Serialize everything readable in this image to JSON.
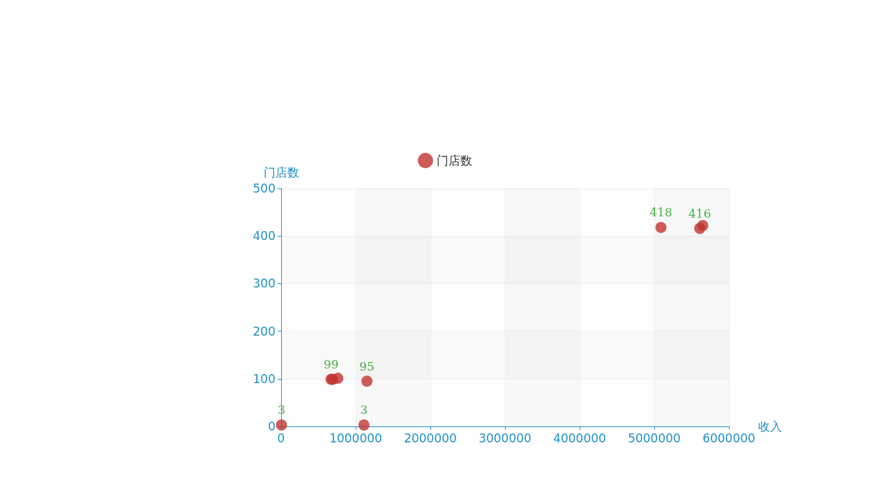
{
  "chart_data": {
    "type": "scatter",
    "xlabel": "收入",
    "ylabel": "门店数",
    "series": [
      {
        "name": "门店数",
        "color": "#c23531",
        "x": [
          5000,
          1110000,
          670000,
          690000,
          760000,
          1150000,
          5090000,
          5610000,
          5650000
        ],
        "values": [
          3,
          3,
          99,
          99,
          101,
          95,
          418,
          416,
          422
        ],
        "value_labels": [
          "3",
          "3",
          "99",
          null,
          null,
          "95",
          "418",
          "416",
          null
        ]
      }
    ],
    "xlim": [
      0,
      6000000
    ],
    "xticks": [
      0,
      1000000,
      2000000,
      3000000,
      4000000,
      5000000,
      6000000
    ],
    "ylim": [
      0,
      500
    ],
    "yticks": [
      0,
      100,
      200,
      300,
      400,
      500
    ],
    "grid": true,
    "legend": "top",
    "marker": "circle"
  }
}
